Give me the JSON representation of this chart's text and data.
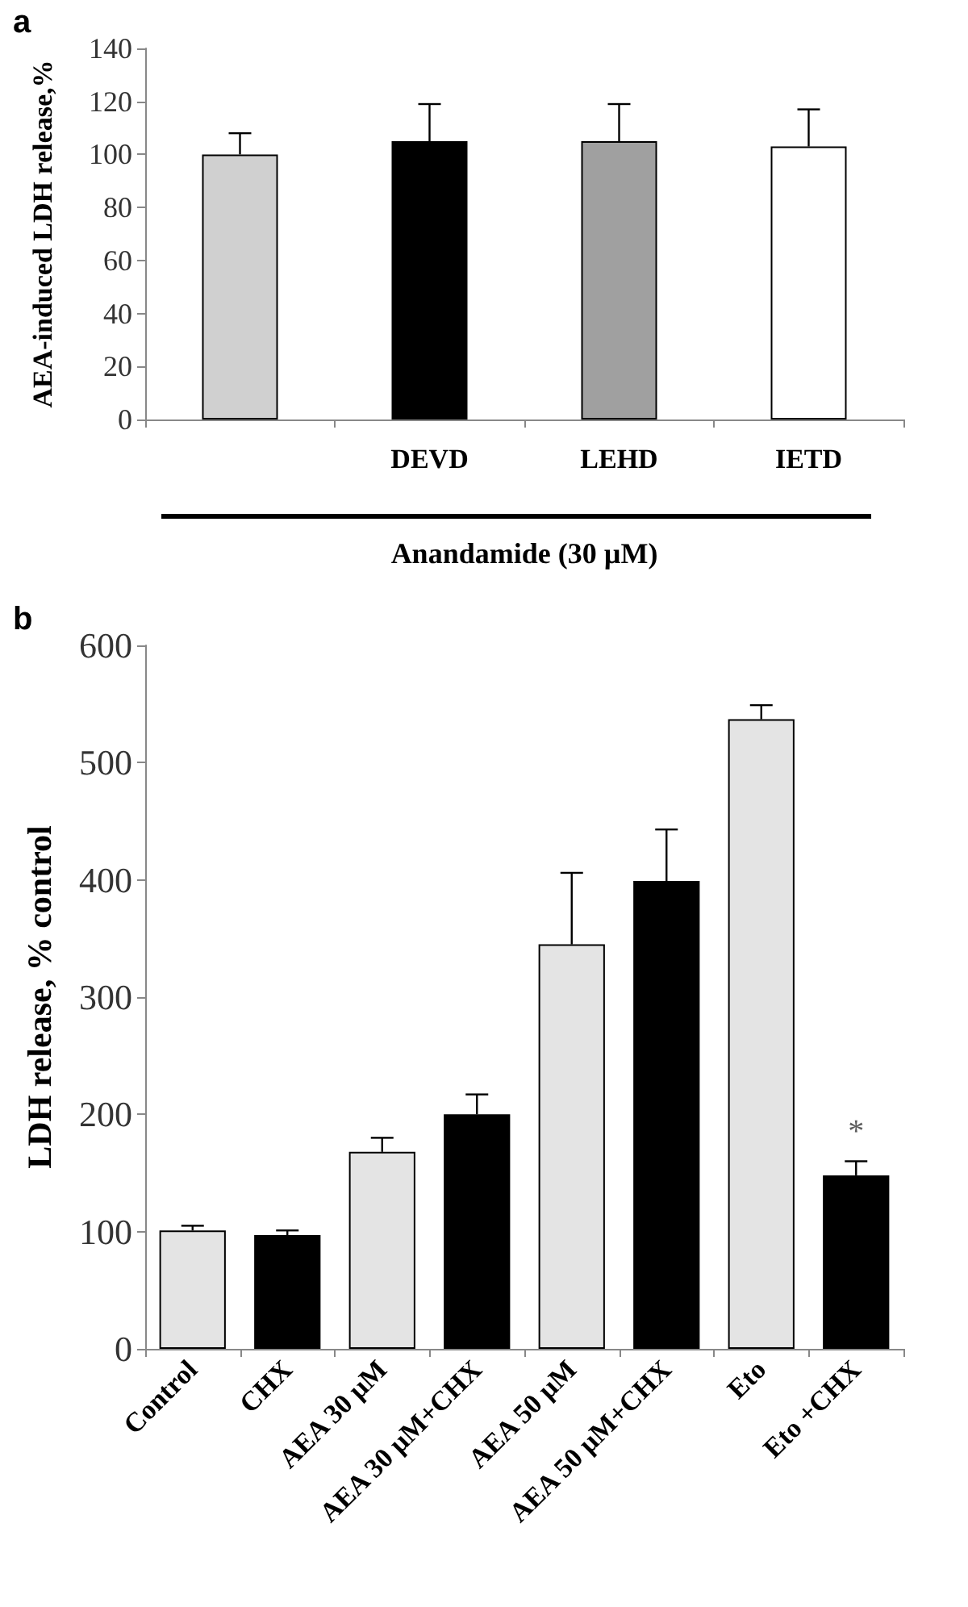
{
  "chart_data": [
    {
      "type": "bar",
      "annotations": [
        "a"
      ],
      "categories": [
        null,
        "DEVD",
        "LEHD",
        "IETD"
      ],
      "values": [
        100,
        105,
        105,
        103
      ],
      "colors": [
        "#d0d0d0",
        "#000000",
        "#a0a0a0",
        "#ffffff"
      ],
      "errors": [
        [
          100,
          108
        ],
        [
          105,
          119
        ],
        [
          105,
          119
        ],
        [
          103,
          117
        ]
      ],
      "ylabel": "AEA-induced LDH release,%",
      "xlabel": "Anandamide (30 µM)",
      "ylim": [
        0,
        140
      ],
      "yticks": [
        0,
        20,
        40,
        60,
        80,
        100,
        120,
        140
      ],
      "grid": false
    },
    {
      "type": "bar",
      "annotations": [
        "b",
        {
          "text": "*",
          "x": "Eto +CHX",
          "y": 160
        }
      ],
      "categories": [
        "Control",
        "CHX",
        "AEA 30 µM",
        "AEA 30 µM+CHX",
        "AEA 50 µM",
        "AEA 50 µM+CHX",
        "Eto",
        "Eto +CHX"
      ],
      "values": [
        101,
        97,
        168,
        200,
        345,
        399,
        537,
        148
      ],
      "colors": [
        "#e4e4e4",
        "#000000",
        "#e4e4e4",
        "#000000",
        "#e4e4e4",
        "#000000",
        "#e4e4e4",
        "#000000"
      ],
      "errors": [
        [
          101,
          105
        ],
        [
          97,
          101
        ],
        [
          168,
          180
        ],
        [
          200,
          217
        ],
        [
          345,
          406
        ],
        [
          399,
          443
        ],
        [
          537,
          549
        ],
        [
          148,
          160
        ]
      ],
      "ylabel": "LDH release, % control",
      "ylim": [
        0,
        600
      ],
      "yticks": [
        0,
        100,
        200,
        300,
        400,
        500,
        600
      ],
      "grid": false
    }
  ]
}
